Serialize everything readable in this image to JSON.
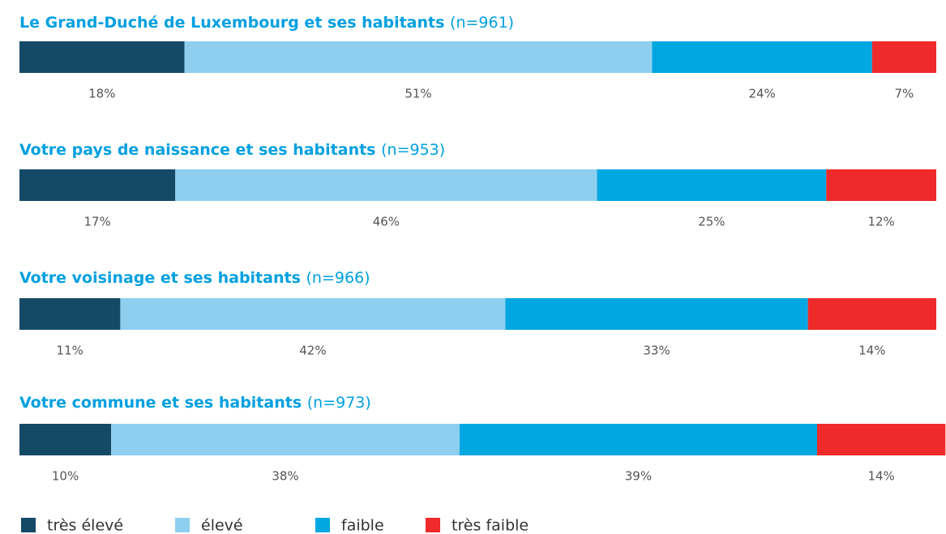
{
  "chart_data": {
    "type": "stacked_bar",
    "categories": [
      "Le Grand-Duché de Luxembourg et ses habitants",
      "Votre pays de naissance et ses habitants",
      "Votre voisinage et ses habitants",
      "Votre commune et ses habitants"
    ],
    "category_counts": [
      "(n=961)",
      "(n=953)",
      "(n=966)",
      "(n=973)"
    ],
    "xlim": [
      0,
      100
    ],
    "series": [
      {
        "name": "très élevé",
        "color": "#154a66",
        "values": [
          18,
          17,
          11,
          10
        ],
        "value_labels": [
          "18%",
          "17%",
          "11%",
          "10%"
        ]
      },
      {
        "name": "élevé",
        "color": "#8ecfef",
        "values": [
          51,
          46,
          42,
          38
        ],
        "value_labels": [
          "51%",
          "46%",
          "42%",
          "38%"
        ]
      },
      {
        "name": "faible",
        "color": "#00a7e1",
        "values": [
          24,
          25,
          33,
          39
        ],
        "value_labels": [
          "24%",
          "25%",
          "33%",
          "39%"
        ]
      },
      {
        "name": "très faible",
        "color": "#ee2a2a",
        "values": [
          7,
          12,
          14,
          14
        ],
        "value_labels": [
          "7%",
          "12%",
          "14%",
          "14%"
        ]
      }
    ],
    "legend": "bottom-left"
  }
}
